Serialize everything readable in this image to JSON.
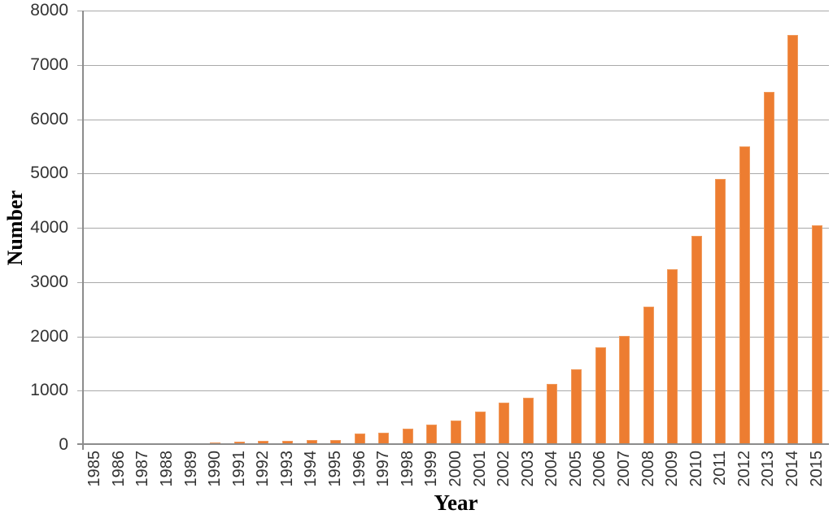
{
  "chart_data": {
    "type": "bar",
    "xlabel": "Year",
    "ylabel": "Number",
    "categories": [
      "1985",
      "1986",
      "1987",
      "1988",
      "1989",
      "1990",
      "1991",
      "1992",
      "1993",
      "1994",
      "1995",
      "1996",
      "1997",
      "1998",
      "1999",
      "2000",
      "2001",
      "2002",
      "2003",
      "2004",
      "2005",
      "2006",
      "2007",
      "2008",
      "2009",
      "2010",
      "2011",
      "2012",
      "2013",
      "2014",
      "2015"
    ],
    "values": [
      20,
      25,
      25,
      20,
      25,
      50,
      65,
      75,
      75,
      90,
      90,
      210,
      230,
      300,
      380,
      450,
      610,
      780,
      870,
      1130,
      1400,
      1800,
      2000,
      2550,
      3230,
      3850,
      4900,
      5500,
      6500,
      7550,
      4050
    ],
    "ylim": [
      0,
      8000
    ],
    "yticks": [
      0,
      1000,
      2000,
      3000,
      4000,
      5000,
      6000,
      7000,
      8000
    ],
    "grid": "horizontal",
    "legend": "none",
    "colors": {
      "bar_fill": "#ED7D31",
      "bar_border": "#F09A5C",
      "gridline": "#A9A9A9",
      "axis_line": "#8C8C8C",
      "tick_label": "#333333",
      "axis_title": "#000000",
      "background": "#FFFFFF"
    }
  }
}
